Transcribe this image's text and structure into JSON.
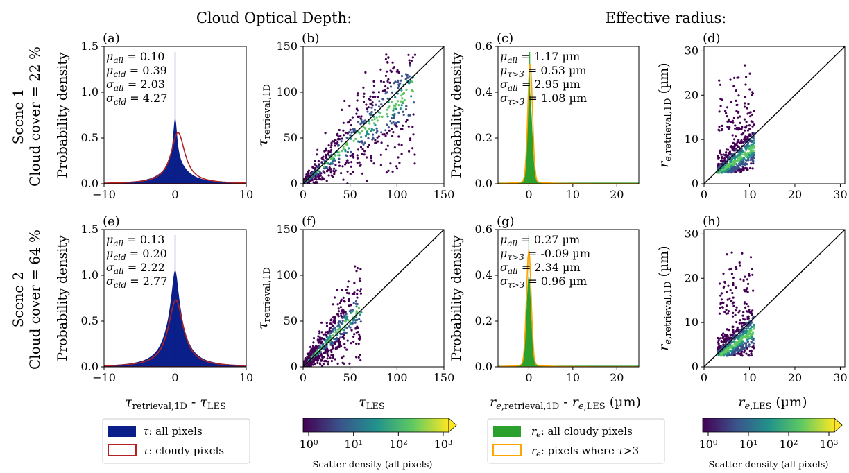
{
  "figure": {
    "col_headers": [
      "Cloud Optical Depth:",
      "Effective radius:"
    ],
    "row_labels": [
      {
        "scene": "Scene 1",
        "cover": "Cloud cover = 22 %"
      },
      {
        "scene": "Scene 2",
        "cover": "Cloud cover = 64 %"
      }
    ],
    "xlabels": {
      "tau_diff": "τretrieval,1D - τLES",
      "tau_les": "τLES",
      "re_diff": "re,retrieval,1D - re,LES (µm)",
      "re_les": "re,LES (µm)"
    },
    "ylabels": {
      "prob": "Probability density",
      "tau_ret": "τretrieval,1D",
      "re_ret": "re,retrieval,1D (µm)"
    },
    "colors": {
      "tau_all": "#0b1f8a",
      "tau_cloudy": "#b22222",
      "re_all": "#2ca02c",
      "re_tau3": "#ffa500",
      "one_to_one": "#000000"
    },
    "legends": {
      "tau": [
        "τ: all pixels",
        "τ: cloudy pixels"
      ],
      "re": [
        "re: all cloudy pixels",
        "re: pixels where τ>3"
      ]
    },
    "colorbar": {
      "label": "Scatter density (all pixels)",
      "ticks": [
        "10⁰",
        "10¹",
        "10²",
        "10³"
      ],
      "colormap": [
        "#440154",
        "#3b528b",
        "#21918c",
        "#5ec962",
        "#fde725"
      ]
    }
  },
  "chart_data": [
    {
      "id": "a",
      "letter": "(a)",
      "type": "histogram",
      "xlim": [
        -10,
        10
      ],
      "ylim": [
        0,
        1.5
      ],
      "xticks": [
        "−10",
        "0",
        "10"
      ],
      "yticks": [
        "0.0",
        "0.5",
        "1.0",
        "1.5"
      ],
      "series": [
        {
          "name": "τ: all pixels",
          "style": "filled",
          "color": "#0b1f8a",
          "center": 0.0,
          "width": 0.35,
          "peak": 1.45,
          "base_peak": 0.22,
          "base_width": 2.0
        },
        {
          "name": "τ: cloudy pixels",
          "style": "step",
          "color": "#b22222",
          "center": 0.4,
          "width": 1.2,
          "peak": 0.56
        }
      ],
      "stats": [
        {
          "label": "μall",
          "value": "= 0.10"
        },
        {
          "label": "μcld",
          "value": "= 0.39"
        },
        {
          "label": "σall",
          "value": "= 2.03"
        },
        {
          "label": "σcld",
          "value": "= 4.27"
        }
      ]
    },
    {
      "id": "b",
      "letter": "(b)",
      "type": "scatter",
      "xlim": [
        0,
        150
      ],
      "ylim": [
        0,
        150
      ],
      "xticks": [
        "0",
        "50",
        "100",
        "150"
      ],
      "yticks": [
        "0",
        "50",
        "100",
        "150"
      ],
      "cloud": {
        "xmax": 120,
        "spread": 0.35,
        "slope": 0.9
      }
    },
    {
      "id": "c",
      "letter": "(c)",
      "type": "histogram",
      "xlim": [
        -7,
        25
      ],
      "ylim": [
        0,
        0.6
      ],
      "xticks": [
        "0",
        "10",
        "20"
      ],
      "yticks": [
        "0.0",
        "0.2",
        "0.4",
        "0.6"
      ],
      "series": [
        {
          "name": "re: all cloudy pixels",
          "style": "filled",
          "color": "#2ca02c",
          "center": 0.2,
          "width": 0.8,
          "peak": 0.4
        },
        {
          "name": "re: pixels where τ>3",
          "style": "step",
          "color": "#ffa500",
          "center": 0.3,
          "width": 0.75,
          "peak": 0.52
        }
      ],
      "stats": [
        {
          "label": "μall",
          "value": "= 1.17 µm"
        },
        {
          "label": "μτ>3",
          "value": "= 0.53 µm"
        },
        {
          "label": "σall",
          "value": "= 2.95 µm"
        },
        {
          "label": "στ>3",
          "value": "= 1.08 µm"
        }
      ]
    },
    {
      "id": "d",
      "letter": "(d)",
      "type": "scatter",
      "xlim": [
        0,
        31
      ],
      "ylim": [
        0,
        31
      ],
      "xticks": [
        "0",
        "10",
        "20",
        "30"
      ],
      "yticks": [
        "0",
        "10",
        "20",
        "30"
      ],
      "cloud": {
        "xmin": 3,
        "xmax": 11,
        "ytop": 27
      }
    },
    {
      "id": "e",
      "letter": "(e)",
      "type": "histogram",
      "xlim": [
        -10,
        10
      ],
      "ylim": [
        0,
        1.5
      ],
      "xticks": [
        "−10",
        "0",
        "10"
      ],
      "yticks": [
        "0.0",
        "0.5",
        "1.0",
        "1.5"
      ],
      "series": [
        {
          "name": "τ: all pixels",
          "style": "filled",
          "color": "#0b1f8a",
          "center": 0.0,
          "width": 0.6,
          "peak": 1.45,
          "base_peak": 0.55,
          "base_width": 1.6
        },
        {
          "name": "τ: cloudy pixels",
          "style": "step",
          "color": "#b22222",
          "center": 0.1,
          "width": 1.3,
          "peak": 0.73
        }
      ],
      "stats": [
        {
          "label": "μall",
          "value": "= 0.13"
        },
        {
          "label": "μcld",
          "value": "= 0.20"
        },
        {
          "label": "σall",
          "value": "= 2.22"
        },
        {
          "label": "σcld",
          "value": "= 2.77"
        }
      ]
    },
    {
      "id": "f",
      "letter": "(f)",
      "type": "scatter",
      "xlim": [
        0,
        150
      ],
      "ylim": [
        0,
        150
      ],
      "xticks": [
        "0",
        "50",
        "100",
        "150"
      ],
      "yticks": [
        "0",
        "50",
        "100",
        "150"
      ],
      "cloud": {
        "xmax": 62,
        "spread": 0.4,
        "slope": 1.05
      }
    },
    {
      "id": "g",
      "letter": "(g)",
      "type": "histogram",
      "xlim": [
        -7,
        25
      ],
      "ylim": [
        0,
        0.6
      ],
      "xticks": [
        "0",
        "10",
        "20"
      ],
      "yticks": [
        "0.0",
        "0.2",
        "0.4",
        "0.6"
      ],
      "series": [
        {
          "name": "re: all cloudy pixels",
          "style": "filled",
          "color": "#2ca02c",
          "center": 0.0,
          "width": 0.75,
          "peak": 0.4
        },
        {
          "name": "re: pixels where τ>3",
          "style": "step",
          "color": "#ffa500",
          "center": 0.0,
          "width": 0.75,
          "peak": 0.5
        }
      ],
      "stats": [
        {
          "label": "μall",
          "value": "= 0.27 µm"
        },
        {
          "label": "μτ>3",
          "value": "= -0.09 µm"
        },
        {
          "label": "σall",
          "value": "= 2.34 µm"
        },
        {
          "label": "στ>3",
          "value": "= 0.96 µm"
        }
      ]
    },
    {
      "id": "h",
      "letter": "(h)",
      "type": "scatter",
      "xlim": [
        0,
        31
      ],
      "ylim": [
        0,
        31
      ],
      "xticks": [
        "0",
        "10",
        "20",
        "30"
      ],
      "yticks": [
        "0",
        "10",
        "20",
        "30"
      ],
      "cloud": {
        "xmin": 3,
        "xmax": 11,
        "ytop": 27
      }
    }
  ]
}
